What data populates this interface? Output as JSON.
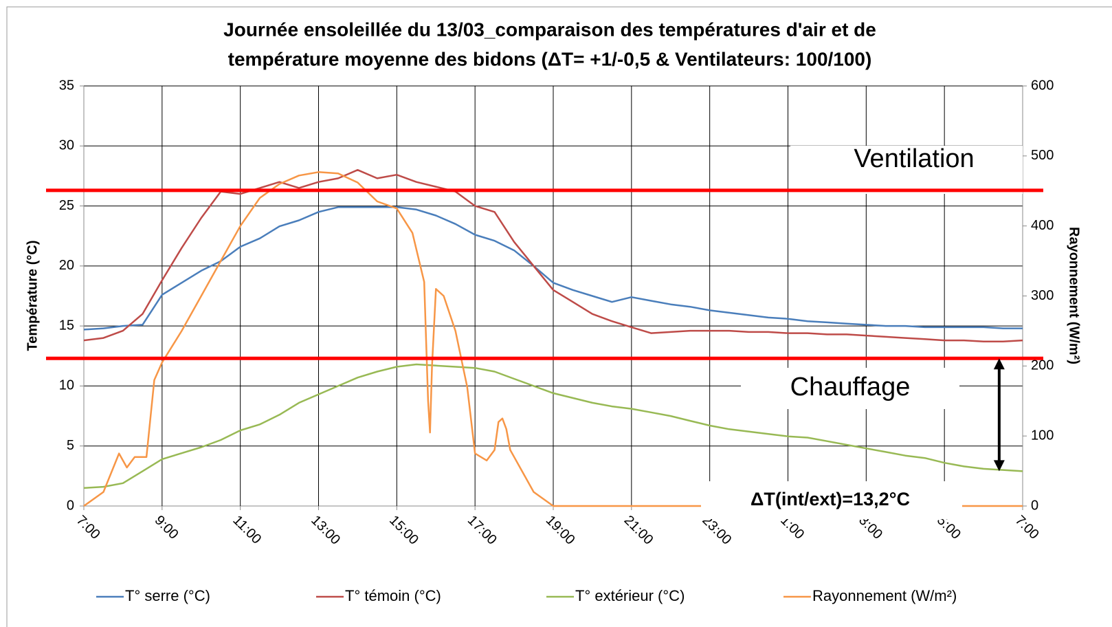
{
  "chart_data": {
    "type": "line",
    "title": [
      "Journée ensoleillée du 13/03_comparaison des températures d'air et de",
      "température moyenne des bidons (ΔT= +1/-0,5 & Ventilateurs: 100/100)"
    ],
    "ylabel": "Température (°C)",
    "y2label": "Rayonnement (W/m²)",
    "x": [
      7,
      7.5,
      8,
      8.5,
      9,
      9.5,
      10,
      10.5,
      11,
      11.5,
      12,
      12.5,
      13,
      13.5,
      14,
      14.5,
      15,
      15.5,
      16,
      16.5,
      17,
      17.5,
      18,
      18.5,
      19,
      19.5,
      20,
      20.5,
      21,
      21.5,
      22,
      22.5,
      23,
      23.5,
      24,
      24.5,
      25,
      25.5,
      26,
      26.5,
      27,
      27.5,
      28,
      28.5,
      29,
      29.5,
      30,
      30.5,
      31
    ],
    "xlim": [
      7,
      31
    ],
    "xticks": [
      {
        "value": 7,
        "label": "7:00"
      },
      {
        "value": 9,
        "label": "9:00"
      },
      {
        "value": 11,
        "label": "11:00"
      },
      {
        "value": 13,
        "label": "13:00"
      },
      {
        "value": 15,
        "label": "15:00"
      },
      {
        "value": 17,
        "label": "17:00"
      },
      {
        "value": 19,
        "label": "19:00"
      },
      {
        "value": 21,
        "label": "21:00"
      },
      {
        "value": 23,
        "label": "23:00"
      },
      {
        "value": 25,
        "label": "1:00"
      },
      {
        "value": 27,
        "label": "3:00"
      },
      {
        "value": 29,
        "label": "5:00"
      },
      {
        "value": 31,
        "label": "7:00"
      }
    ],
    "ylim": [
      0,
      35
    ],
    "yticks": [
      0,
      5,
      10,
      15,
      20,
      25,
      30,
      35
    ],
    "y2lim": [
      0,
      600
    ],
    "y2ticks": [
      0,
      100,
      200,
      300,
      400,
      500,
      600
    ],
    "grid": true,
    "legend": "bottom",
    "series": [
      {
        "name": "T° serre (°C)",
        "color": "#4a7ebb",
        "values": [
          14.7,
          14.8,
          15.0,
          15.1,
          17.6,
          18.6,
          19.6,
          20.4,
          21.6,
          22.3,
          23.3,
          23.8,
          24.5,
          24.9,
          24.9,
          24.9,
          24.9,
          24.7,
          24.2,
          23.5,
          22.6,
          22.1,
          21.3,
          20.0,
          18.6,
          18.0,
          17.5,
          17.0,
          17.4,
          17.1,
          16.8,
          16.6,
          16.3,
          16.1,
          15.9,
          15.7,
          15.6,
          15.4,
          15.3,
          15.2,
          15.1,
          15.0,
          15.0,
          14.9,
          14.9,
          14.9,
          14.9,
          14.8,
          14.8
        ]
      },
      {
        "name": "T° témoin (°C)",
        "color": "#be4b48",
        "values": [
          13.8,
          14.0,
          14.6,
          16.0,
          18.8,
          21.5,
          24.0,
          26.2,
          26.0,
          26.5,
          27.0,
          26.5,
          27.0,
          27.3,
          28.0,
          27.3,
          27.6,
          27.0,
          26.6,
          26.2,
          25.0,
          24.5,
          22.0,
          20.0,
          18.0,
          17.0,
          16.0,
          15.4,
          14.9,
          14.4,
          14.5,
          14.6,
          14.6,
          14.6,
          14.5,
          14.5,
          14.4,
          14.4,
          14.3,
          14.3,
          14.2,
          14.1,
          14.0,
          13.9,
          13.8,
          13.8,
          13.7,
          13.7,
          13.8
        ]
      },
      {
        "name": "T° extérieur (°C)",
        "color": "#98b954",
        "values": [
          1.5,
          1.6,
          1.9,
          2.9,
          3.9,
          4.4,
          4.9,
          5.5,
          6.3,
          6.8,
          7.6,
          8.6,
          9.3,
          10.0,
          10.7,
          11.2,
          11.6,
          11.8,
          11.7,
          11.6,
          11.5,
          11.2,
          10.6,
          10.0,
          9.4,
          9.0,
          8.6,
          8.3,
          8.1,
          7.8,
          7.5,
          7.1,
          6.7,
          6.4,
          6.2,
          6.0,
          5.8,
          5.7,
          5.4,
          5.1,
          4.8,
          4.5,
          4.2,
          4.0,
          3.6,
          3.3,
          3.1,
          3.0,
          2.9
        ]
      },
      {
        "name": "Rayonnement (W/m²)",
        "color": "#f79646",
        "axis": "y2",
        "x": [
          7,
          7.5,
          7.9,
          8.1,
          8.3,
          8.6,
          8.8,
          9,
          9.5,
          10,
          10.5,
          11,
          11.5,
          12,
          12.5,
          13,
          13.5,
          14,
          14.5,
          15,
          15.4,
          15.7,
          15.8,
          15.85,
          15.9,
          16,
          16.2,
          16.5,
          16.8,
          17,
          17.3,
          17.5,
          17.6,
          17.7,
          17.8,
          17.9,
          18,
          18.2,
          18.5,
          19,
          31
        ],
        "values": [
          0,
          20,
          75,
          55,
          70,
          70,
          180,
          205,
          250,
          300,
          350,
          400,
          440,
          460,
          472,
          477,
          475,
          462,
          435,
          425,
          390,
          320,
          150,
          105,
          200,
          310,
          300,
          250,
          170,
          75,
          65,
          80,
          120,
          125,
          110,
          80,
          70,
          50,
          20,
          0,
          0
        ]
      }
    ],
    "reference_lines": [
      {
        "value": 26.3,
        "color": "#ff0000"
      },
      {
        "value": 12.3,
        "color": "#ff0000"
      }
    ],
    "annotations": [
      {
        "text": "Ventilation"
      },
      {
        "text": "Chauffage"
      },
      {
        "text": "ΔT(int/ext)=13,2°C"
      }
    ],
    "delta_arrow": {
      "x": 30.4,
      "y_top": 12.3,
      "y_bottom": 2.9
    }
  }
}
